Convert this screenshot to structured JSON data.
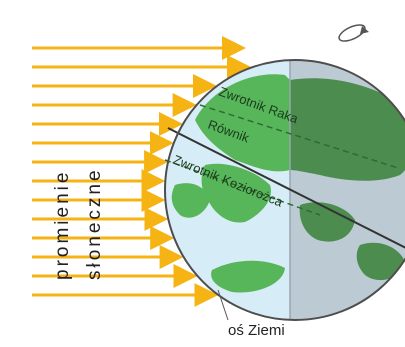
{
  "labels": {
    "rays_line1": "promienie",
    "rays_line2": "słoneczne",
    "tropic_cancer": "Zwrotnik Raka",
    "equator": "Równik",
    "tropic_capricorn": "Zwrotnik Koziorożca",
    "axis": "oś Ziemi"
  },
  "colors": {
    "ray": "#f5b314",
    "ocean_lit": "#d6ecf6",
    "ocean_shade": "#bccbd3",
    "land_lit": "#58b65a",
    "land_shade": "#4c8d4f",
    "outline": "#4d4d4d"
  },
  "icons": {
    "rotation": "rotation-arrow-icon"
  }
}
